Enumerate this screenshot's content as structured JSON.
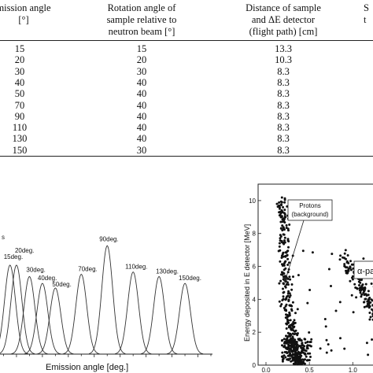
{
  "table": {
    "headers": [
      [
        "mission angle",
        "[°]"
      ],
      [
        "Rotation angle of",
        "sample relative to",
        "neutron beam [°]"
      ],
      [
        "Distance of sample",
        "and ΔE detector",
        "(flight path) [cm]"
      ],
      [
        "S",
        "t"
      ]
    ],
    "rows": [
      [
        "15",
        "15",
        "13.3"
      ],
      [
        "20",
        "20",
        "10.3"
      ],
      [
        "30",
        "30",
        "8.3"
      ],
      [
        "40",
        "40",
        "8.3"
      ],
      [
        "50",
        "40",
        "8.3"
      ],
      [
        "70",
        "40",
        "8.3"
      ],
      [
        "90",
        "40",
        "8.3"
      ],
      [
        "110",
        "40",
        "8.3"
      ],
      [
        "130",
        "40",
        "8.3"
      ],
      [
        "150",
        "30",
        "8.3"
      ]
    ]
  },
  "chart_data": [
    {
      "type": "line",
      "corner_label": "s",
      "xlabel": "Emission angle [deg.]",
      "xlim": [
        0,
        170
      ],
      "peak_width_sigma": 4.2,
      "series": [
        {
          "label": "15deg.",
          "x_center": 15,
          "peak": 0.78
        },
        {
          "label": "20deg.",
          "x_center": 20,
          "peak": 0.78
        },
        {
          "label": "30deg.",
          "x_center": 30,
          "peak": 0.68
        },
        {
          "label": "40deg.",
          "x_center": 40,
          "peak": 0.62
        },
        {
          "label": "50deg.",
          "x_center": 50,
          "peak": 0.58
        },
        {
          "label": "70deg.",
          "x_center": 70,
          "peak": 0.7
        },
        {
          "label": "90deg.",
          "x_center": 90,
          "peak": 0.95
        },
        {
          "label": "110deg.",
          "x_center": 110,
          "peak": 0.72
        },
        {
          "label": "130deg.",
          "x_center": 130,
          "peak": 0.68
        },
        {
          "label": "150deg.",
          "x_center": 150,
          "peak": 0.62
        }
      ]
    },
    {
      "type": "scatter",
      "ylabel": "Energy deposited in E detector [MeV]",
      "xlim": [
        0,
        1.5
      ],
      "ylim": [
        0,
        11
      ],
      "yticks": [
        0,
        2,
        4,
        6,
        8,
        10
      ],
      "xticks": [
        0.0,
        0.5,
        1.0
      ],
      "xtick_labels": [
        "0.0",
        "0.5",
        "1.0"
      ],
      "annotations": [
        {
          "text_lines": [
            "Protons",
            "(background)"
          ]
        },
        {
          "text": "α-pa"
        }
      ],
      "clusters": [
        {
          "name": "protons",
          "x_range": [
            0.05,
            0.4
          ],
          "y_range": [
            0.3,
            10.2
          ]
        },
        {
          "name": "alpha",
          "x_range": [
            0.9,
            1.5
          ],
          "y_range": [
            0.5,
            6.8
          ]
        }
      ]
    }
  ]
}
